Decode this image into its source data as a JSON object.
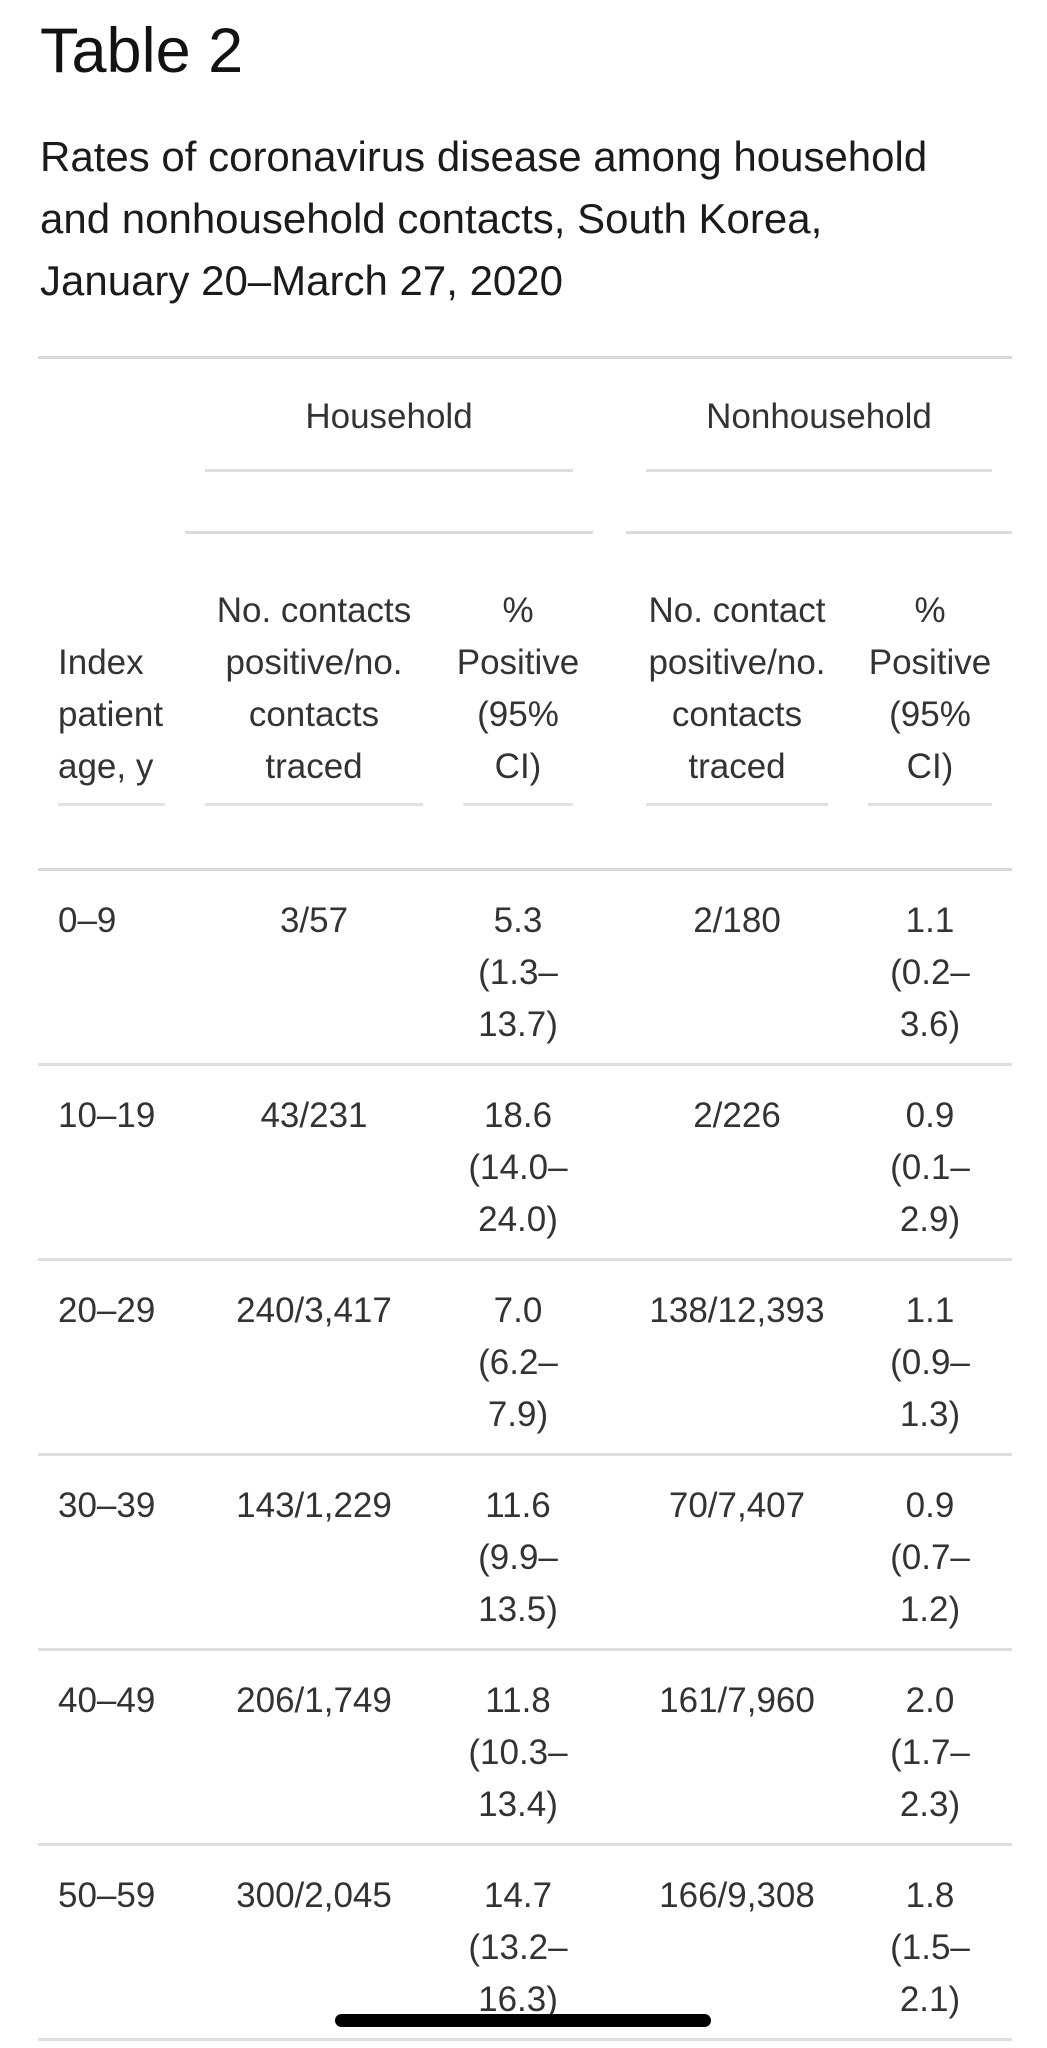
{
  "page": {
    "title": "Table 2",
    "caption_lines": [
      "Rates of coronavirus disease among household",
      "and nonhousehold contacts, South Korea,",
      "January 20–March 27, 2020"
    ]
  },
  "table": {
    "groups": [
      {
        "label": "Household"
      },
      {
        "label": "Nonhousehold"
      }
    ],
    "columns": {
      "age": {
        "header_lines": [
          "Index",
          "patient",
          "age, y"
        ]
      },
      "hh_ratio": {
        "header_lines": [
          "No. contacts",
          "positive/no.",
          "contacts",
          "traced"
        ]
      },
      "hh_pct": {
        "header_lines": [
          "%",
          "Positive",
          "(95%",
          "CI)"
        ]
      },
      "nh_ratio": {
        "header_lines": [
          "No. contact",
          "positive/no.",
          "contacts",
          "traced"
        ]
      },
      "nh_pct": {
        "header_lines": [
          "%",
          "Positive",
          "(95%",
          "CI)"
        ]
      }
    },
    "rows": [
      {
        "age": "0–9",
        "hh_ratio": "3/57",
        "hh_pct": "5.3",
        "hh_ci": "(1.3–13.7)",
        "nh_ratio": "2/180",
        "nh_pct": "1.1",
        "nh_ci": "(0.2–3.6)"
      },
      {
        "age": "10–19",
        "hh_ratio": "43/231",
        "hh_pct": "18.6",
        "hh_ci": "(14.0–24.0)",
        "nh_ratio": "2/226",
        "nh_pct": "0.9",
        "nh_ci": "(0.1–2.9)"
      },
      {
        "age": "20–29",
        "hh_ratio": "240/3,417",
        "hh_pct": "7.0",
        "hh_ci": "(6.2–7.9)",
        "nh_ratio": "138/12,393",
        "nh_pct": "1.1",
        "nh_ci": "(0.9–1.3)"
      },
      {
        "age": "30–39",
        "hh_ratio": "143/1,229",
        "hh_pct": "11.6",
        "hh_ci": "(9.9–13.5)",
        "nh_ratio": "70/7,407",
        "nh_pct": "0.9",
        "nh_ci": "(0.7–1.2)"
      },
      {
        "age": "40–49",
        "hh_ratio": "206/1,749",
        "hh_pct": "11.8",
        "hh_ci": "(10.3–13.4)",
        "nh_ratio": "161/7,960",
        "nh_pct": "2.0",
        "nh_ci": "(1.7–2.3)"
      },
      {
        "age": "50–59",
        "hh_ratio": "300/2,045",
        "hh_pct": "14.7",
        "hh_ci": "(13.2–16.3)",
        "nh_ratio": "166/9,308",
        "nh_pct": "1.8",
        "nh_ci": "(1.5–2.1)"
      }
    ]
  },
  "scrollbar": {
    "color": "#000000"
  }
}
